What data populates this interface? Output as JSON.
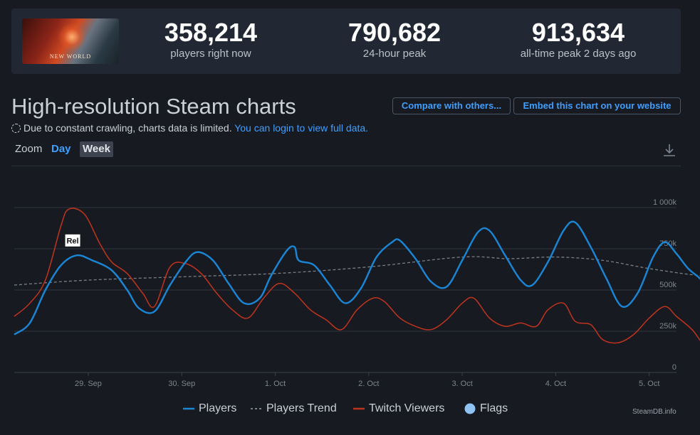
{
  "stats": {
    "players_now": "358,214",
    "players_now_label": "players right now",
    "peak_24h": "790,682",
    "peak_24h_label": "24-hour peak",
    "all_time_peak": "913,634",
    "all_time_peak_label": "all-time peak 2 days ago",
    "game_logo_text": "NEW WORLD"
  },
  "header": {
    "title": "High-resolution Steam charts",
    "compare_button": "Compare with others...",
    "embed_button": "Embed this chart on your website"
  },
  "notice": {
    "text": "Due to constant crawling, charts data is limited.",
    "link": "You can login to view full data."
  },
  "zoom": {
    "label": "Zoom",
    "day": "Day",
    "week": "Week"
  },
  "icons": {
    "download": "download-icon",
    "notice": "dashed-circle-icon"
  },
  "colors": {
    "players": "#1a86d6",
    "trend": "#7a7f86",
    "twitch": "#c0341d",
    "flags": "#8fc3f4",
    "accent": "#3f9fff"
  },
  "credit": "SteamDB.info",
  "chart_data": {
    "type": "line",
    "ylim": [
      0,
      1000000
    ],
    "yticks": [
      {
        "value": 0,
        "label": "0"
      },
      {
        "value": 250000,
        "label": "250k"
      },
      {
        "value": 500000,
        "label": "500k"
      },
      {
        "value": 750000,
        "label": "750k"
      },
      {
        "value": 1000000,
        "label": "1 000k"
      }
    ],
    "x_start": "2021-09-28 05:00",
    "x_end": "2021-10-05 07:00",
    "xticks": [
      {
        "value": "2021-09-29",
        "label": "29. Sep"
      },
      {
        "value": "2021-09-30",
        "label": "30. Sep"
      },
      {
        "value": "2021-10-01",
        "label": "1. Oct"
      },
      {
        "value": "2021-10-02",
        "label": "2. Oct"
      },
      {
        "value": "2021-10-03",
        "label": "3. Oct"
      },
      {
        "value": "2021-10-04",
        "label": "4. Oct"
      },
      {
        "value": "2021-10-05",
        "label": "5. Oct"
      }
    ],
    "legend_position": "bottom",
    "grid": true,
    "flags": [
      {
        "x": "2021-09-28 20:00",
        "label": "Rel"
      }
    ],
    "series": [
      {
        "name": "Players",
        "points": [
          [
            "2021-09-28 05:00",
            230000
          ],
          [
            "2021-09-28 09:00",
            300000
          ],
          [
            "2021-09-28 13:00",
            500000
          ],
          [
            "2021-09-28 17:00",
            650000
          ],
          [
            "2021-09-28 21:00",
            710000
          ],
          [
            "2021-09-29 01:00",
            680000
          ],
          [
            "2021-09-29 06:00",
            620000
          ],
          [
            "2021-09-29 10:00",
            500000
          ],
          [
            "2021-09-29 13:00",
            390000
          ],
          [
            "2021-09-29 17:00",
            370000
          ],
          [
            "2021-09-29 21:00",
            530000
          ],
          [
            "2021-09-30 01:00",
            670000
          ],
          [
            "2021-09-30 04:00",
            730000
          ],
          [
            "2021-09-30 08:00",
            680000
          ],
          [
            "2021-09-30 12:00",
            540000
          ],
          [
            "2021-09-30 16:00",
            420000
          ],
          [
            "2021-09-30 20:00",
            450000
          ],
          [
            "2021-09-30 23:00",
            590000
          ],
          [
            "2021-10-01 03:00",
            740000
          ],
          [
            "2021-10-01 05:00",
            760000
          ],
          [
            "2021-10-01 06:00",
            680000
          ],
          [
            "2021-10-01 10:00",
            650000
          ],
          [
            "2021-10-01 14:00",
            530000
          ],
          [
            "2021-10-01 18:00",
            420000
          ],
          [
            "2021-10-01 22:00",
            510000
          ],
          [
            "2021-10-02 02:00",
            700000
          ],
          [
            "2021-10-02 06:00",
            790000
          ],
          [
            "2021-10-02 08:00",
            800000
          ],
          [
            "2021-10-02 12:00",
            690000
          ],
          [
            "2021-10-02 16:00",
            550000
          ],
          [
            "2021-10-02 20:00",
            520000
          ],
          [
            "2021-10-03 00:00",
            680000
          ],
          [
            "2021-10-03 04:00",
            850000
          ],
          [
            "2021-10-03 07:00",
            860000
          ],
          [
            "2021-10-03 11:00",
            710000
          ],
          [
            "2021-10-03 15:00",
            560000
          ],
          [
            "2021-10-03 18:00",
            530000
          ],
          [
            "2021-10-03 22:00",
            670000
          ],
          [
            "2021-10-04 02:00",
            860000
          ],
          [
            "2021-10-04 05:00",
            910000
          ],
          [
            "2021-10-04 09:00",
            760000
          ],
          [
            "2021-10-04 13:00",
            570000
          ],
          [
            "2021-10-04 17:00",
            400000
          ],
          [
            "2021-10-04 21:00",
            480000
          ],
          [
            "2021-10-05 01:00",
            700000
          ],
          [
            "2021-10-05 04:00",
            790000
          ],
          [
            "2021-10-05 07:00",
            720000
          ],
          [
            "2021-10-05 10:00",
            630000
          ],
          [
            "2021-10-05 14:00",
            540000
          ],
          [
            "2021-10-05 17:00",
            360000
          ]
        ]
      },
      {
        "name": "Players Trend",
        "points": [
          [
            "2021-09-28 05:00",
            530000
          ],
          [
            "2021-09-29 00:00",
            560000
          ],
          [
            "2021-09-30 00:00",
            580000
          ],
          [
            "2021-10-01 00:00",
            600000
          ],
          [
            "2021-10-02 00:00",
            640000
          ],
          [
            "2021-10-03 00:00",
            700000
          ],
          [
            "2021-10-03 12:00",
            690000
          ],
          [
            "2021-10-04 00:00",
            700000
          ],
          [
            "2021-10-04 12:00",
            680000
          ],
          [
            "2021-10-05 00:00",
            630000
          ],
          [
            "2021-10-05 12:00",
            590000
          ],
          [
            "2021-10-05 17:00",
            590000
          ]
        ]
      },
      {
        "name": "Twitch Viewers",
        "points": [
          [
            "2021-09-28 05:00",
            340000
          ],
          [
            "2021-09-28 09:00",
            420000
          ],
          [
            "2021-09-28 13:00",
            560000
          ],
          [
            "2021-09-28 17:00",
            890000
          ],
          [
            "2021-09-28 19:00",
            990000
          ],
          [
            "2021-09-28 23:00",
            960000
          ],
          [
            "2021-09-29 03:00",
            780000
          ],
          [
            "2021-09-29 06:00",
            670000
          ],
          [
            "2021-09-29 10:00",
            600000
          ],
          [
            "2021-09-29 14:00",
            480000
          ],
          [
            "2021-09-29 17:00",
            400000
          ],
          [
            "2021-09-29 21:00",
            640000
          ],
          [
            "2021-09-30 01:00",
            660000
          ],
          [
            "2021-09-30 05:00",
            600000
          ],
          [
            "2021-09-30 09:00",
            480000
          ],
          [
            "2021-09-30 13:00",
            380000
          ],
          [
            "2021-09-30 17:00",
            330000
          ],
          [
            "2021-09-30 21:00",
            450000
          ],
          [
            "2021-10-01 01:00",
            540000
          ],
          [
            "2021-10-01 05:00",
            480000
          ],
          [
            "2021-10-01 09:00",
            380000
          ],
          [
            "2021-10-01 13:00",
            320000
          ],
          [
            "2021-10-01 17:00",
            260000
          ],
          [
            "2021-10-01 21:00",
            380000
          ],
          [
            "2021-10-02 01:00",
            450000
          ],
          [
            "2021-10-02 04:00",
            430000
          ],
          [
            "2021-10-02 08:00",
            330000
          ],
          [
            "2021-10-02 12:00",
            280000
          ],
          [
            "2021-10-02 16:00",
            260000
          ],
          [
            "2021-10-02 20:00",
            320000
          ],
          [
            "2021-10-03 00:00",
            420000
          ],
          [
            "2021-10-03 03:00",
            450000
          ],
          [
            "2021-10-03 07:00",
            330000
          ],
          [
            "2021-10-03 11:00",
            280000
          ],
          [
            "2021-10-03 15:00",
            300000
          ],
          [
            "2021-10-03 19:00",
            280000
          ],
          [
            "2021-10-03 22:00",
            380000
          ],
          [
            "2021-10-04 02:00",
            420000
          ],
          [
            "2021-10-04 05:00",
            310000
          ],
          [
            "2021-10-04 09:00",
            290000
          ],
          [
            "2021-10-04 12:00",
            200000
          ],
          [
            "2021-10-04 16:00",
            180000
          ],
          [
            "2021-10-04 20:00",
            230000
          ],
          [
            "2021-10-05 00:00",
            330000
          ],
          [
            "2021-10-05 04:00",
            400000
          ],
          [
            "2021-10-05 07:00",
            340000
          ],
          [
            "2021-10-05 11:00",
            260000
          ],
          [
            "2021-10-05 14:00",
            170000
          ],
          [
            "2021-10-05 17:00",
            150000
          ]
        ]
      }
    ]
  }
}
